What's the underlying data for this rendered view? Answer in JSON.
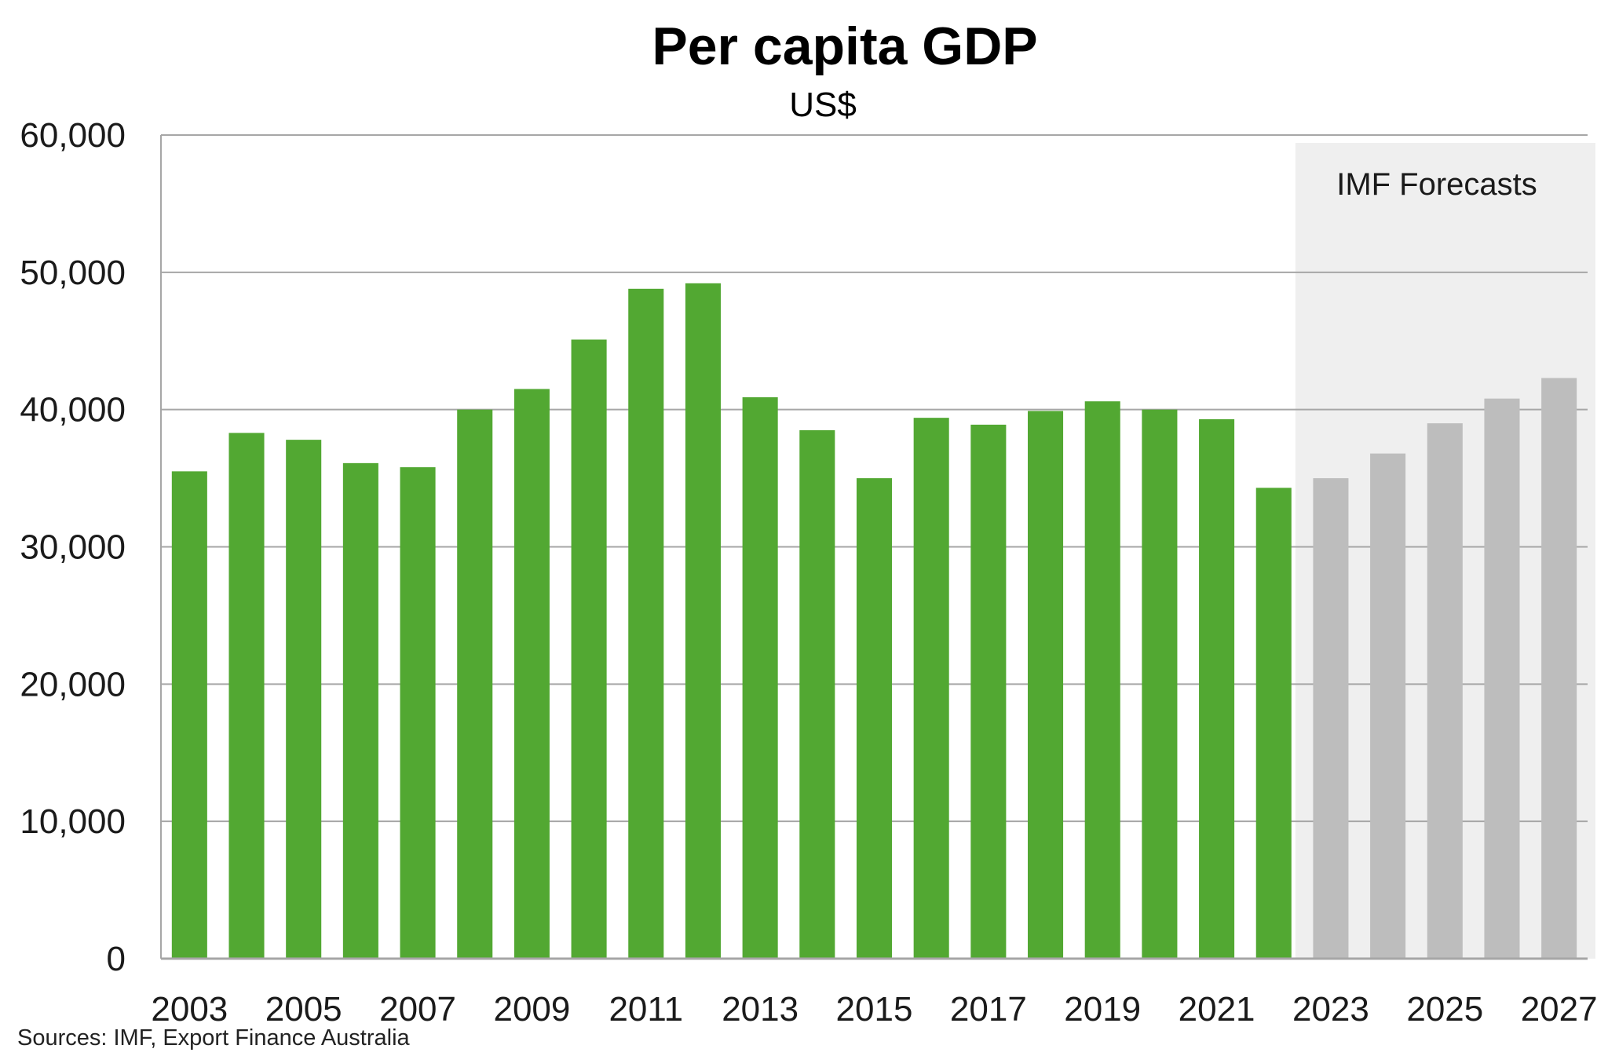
{
  "chart_data": {
    "type": "bar",
    "title": "Per capita GDP",
    "subtitle": "US$",
    "xlabel": "",
    "ylabel": "",
    "ylim": [
      0,
      60000
    ],
    "yticks": [
      "0",
      "10,000",
      "20,000",
      "30,000",
      "40,000",
      "50,000",
      "60,000"
    ],
    "xtick_labels": [
      "2003",
      "2005",
      "2007",
      "2009",
      "2011",
      "2013",
      "2015",
      "2017",
      "2019",
      "2021",
      "2023",
      "2025",
      "2027"
    ],
    "categories": [
      2003,
      2004,
      2005,
      2006,
      2007,
      2008,
      2009,
      2010,
      2011,
      2012,
      2013,
      2014,
      2015,
      2016,
      2017,
      2018,
      2019,
      2020,
      2021,
      2022,
      2023,
      2024,
      2025,
      2026,
      2027
    ],
    "values": [
      35500,
      38300,
      37800,
      36100,
      35800,
      40000,
      41500,
      45100,
      48800,
      49200,
      40900,
      38500,
      35000,
      39400,
      38900,
      39900,
      40600,
      40000,
      39300,
      34300,
      35000,
      36800,
      39000,
      40800,
      42300
    ],
    "forecast_from": 2023,
    "forecast_label": "IMF Forecasts",
    "grid": true,
    "colors": {
      "actual": "#52a832",
      "forecast": "#bdbdbd",
      "forecast_band": "#efefef",
      "grid": "#a6a6a6"
    },
    "source": "Sources: IMF, Export Finance Australia"
  }
}
